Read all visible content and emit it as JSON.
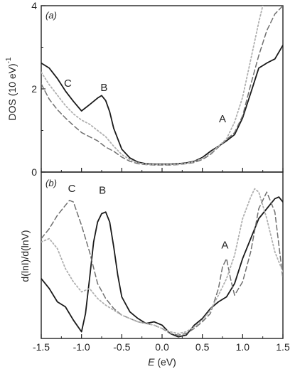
{
  "chart_data": [
    {
      "panel": "(a)",
      "panel_letter": "a",
      "type": "line",
      "ylabel": "DOS (10 eV)",
      "ylabel_exponent": "-1",
      "xlim": [
        -1.5,
        1.5
      ],
      "ylim": [
        0,
        4
      ],
      "yticks": [
        0,
        2,
        4
      ],
      "grid": false,
      "series": [
        {
          "style": "solid",
          "color": "#1a1a1a",
          "x": [
            -1.5,
            -1.4,
            -1.3,
            -1.2,
            -1.1,
            -1.0,
            -0.9,
            -0.8,
            -0.75,
            -0.7,
            -0.65,
            -0.6,
            -0.5,
            -0.4,
            -0.3,
            -0.2,
            -0.1,
            0.0,
            0.1,
            0.2,
            0.3,
            0.4,
            0.5,
            0.6,
            0.7,
            0.8,
            0.9,
            1.0,
            1.1,
            1.2,
            1.3,
            1.4,
            1.5
          ],
          "y": [
            2.62,
            2.5,
            2.25,
            1.95,
            1.7,
            1.47,
            1.62,
            1.78,
            1.84,
            1.72,
            1.45,
            1.05,
            0.55,
            0.34,
            0.24,
            0.2,
            0.19,
            0.19,
            0.19,
            0.2,
            0.22,
            0.26,
            0.35,
            0.5,
            0.62,
            0.75,
            0.9,
            1.3,
            1.9,
            2.5,
            2.62,
            2.72,
            3.05
          ]
        },
        {
          "style": "dashed",
          "color": "#707070",
          "x": [
            -1.5,
            -1.4,
            -1.3,
            -1.2,
            -1.1,
            -1.0,
            -0.9,
            -0.8,
            -0.7,
            -0.6,
            -0.5,
            -0.4,
            -0.3,
            -0.2,
            -0.1,
            0.0,
            0.1,
            0.2,
            0.3,
            0.4,
            0.5,
            0.6,
            0.7,
            0.8,
            0.9,
            1.0,
            1.1,
            1.2,
            1.3,
            1.4,
            1.5
          ],
          "y": [
            2.12,
            1.75,
            1.5,
            1.3,
            1.12,
            0.95,
            0.85,
            0.75,
            0.6,
            0.5,
            0.36,
            0.26,
            0.2,
            0.18,
            0.17,
            0.17,
            0.17,
            0.18,
            0.2,
            0.23,
            0.3,
            0.42,
            0.6,
            0.78,
            0.95,
            1.35,
            2.1,
            2.8,
            3.4,
            3.8,
            4.0
          ]
        },
        {
          "style": "dotted",
          "color": "#b0b0b0",
          "x": [
            -1.5,
            -1.4,
            -1.3,
            -1.2,
            -1.1,
            -1.0,
            -0.9,
            -0.8,
            -0.7,
            -0.6,
            -0.5,
            -0.4,
            -0.3,
            -0.2,
            -0.1,
            0.0,
            0.1,
            0.2,
            0.3,
            0.4,
            0.5,
            0.6,
            0.7,
            0.8,
            0.9,
            1.0,
            1.1,
            1.2,
            1.25
          ],
          "y": [
            2.4,
            2.1,
            1.85,
            1.6,
            1.4,
            1.25,
            1.15,
            1.0,
            0.85,
            0.62,
            0.42,
            0.3,
            0.22,
            0.19,
            0.18,
            0.18,
            0.18,
            0.19,
            0.21,
            0.25,
            0.33,
            0.45,
            0.62,
            0.8,
            1.2,
            1.8,
            2.7,
            3.6,
            4.0
          ]
        }
      ],
      "annotations": [
        {
          "text": "C",
          "x": -1.17,
          "y": 2.05
        },
        {
          "text": "B",
          "x": -0.72,
          "y": 1.95
        },
        {
          "text": "A",
          "x": 0.75,
          "y": 1.2
        }
      ]
    },
    {
      "panel": "(b)",
      "panel_letter": "b",
      "type": "line",
      "xlabel": "E",
      "xlabel_unit": " (eV)",
      "ylabel": "d(lnI)/d(lnV)",
      "xlim": [
        -1.5,
        1.5
      ],
      "xticks": [
        -1.5,
        -1.0,
        -0.5,
        0.0,
        0.5,
        1.0,
        1.5
      ],
      "xtick_labels": [
        "-1.5",
        "-1.0",
        "-0.5",
        "0.0",
        "0.5",
        "1.0",
        "1.5"
      ],
      "ylim": [
        0,
        1
      ],
      "grid": false,
      "series": [
        {
          "style": "solid",
          "color": "#1a1a1a",
          "x": [
            -1.5,
            -1.4,
            -1.3,
            -1.2,
            -1.1,
            -1.0,
            -0.95,
            -0.9,
            -0.85,
            -0.8,
            -0.75,
            -0.7,
            -0.65,
            -0.6,
            -0.55,
            -0.5,
            -0.4,
            -0.3,
            -0.2,
            -0.1,
            0.0,
            0.1,
            0.2,
            0.3,
            0.4,
            0.5,
            0.6,
            0.7,
            0.8,
            0.9,
            1.0,
            1.1,
            1.2,
            1.3,
            1.4,
            1.45,
            1.5
          ],
          "y": [
            0.36,
            0.3,
            0.22,
            0.19,
            0.11,
            0.04,
            0.15,
            0.36,
            0.58,
            0.7,
            0.75,
            0.76,
            0.7,
            0.55,
            0.38,
            0.25,
            0.16,
            0.12,
            0.09,
            0.1,
            0.08,
            0.03,
            0.01,
            0.02,
            0.08,
            0.12,
            0.18,
            0.22,
            0.25,
            0.33,
            0.48,
            0.6,
            0.72,
            0.78,
            0.84,
            0.85,
            0.82
          ]
        },
        {
          "style": "dashed",
          "color": "#707070",
          "x": [
            -1.5,
            -1.4,
            -1.3,
            -1.2,
            -1.15,
            -1.1,
            -1.0,
            -0.9,
            -0.8,
            -0.7,
            -0.6,
            -0.5,
            -0.4,
            -0.3,
            -0.2,
            -0.1,
            0.0,
            0.1,
            0.2,
            0.3,
            0.4,
            0.5,
            0.6,
            0.7,
            0.75,
            0.8,
            0.85,
            0.9,
            1.0,
            1.1,
            1.2,
            1.3,
            1.4,
            1.5
          ],
          "y": [
            0.6,
            0.66,
            0.74,
            0.8,
            0.83,
            0.82,
            0.68,
            0.52,
            0.33,
            0.24,
            0.18,
            0.14,
            0.12,
            0.1,
            0.09,
            0.08,
            0.06,
            0.03,
            0.02,
            0.03,
            0.06,
            0.1,
            0.15,
            0.3,
            0.43,
            0.48,
            0.36,
            0.26,
            0.34,
            0.52,
            0.78,
            0.88,
            0.76,
            0.36
          ]
        },
        {
          "style": "dotted",
          "color": "#b0b0b0",
          "x": [
            -1.5,
            -1.4,
            -1.3,
            -1.2,
            -1.1,
            -1.0,
            -0.9,
            -0.8,
            -0.7,
            -0.6,
            -0.5,
            -0.4,
            -0.3,
            -0.2,
            -0.1,
            0.0,
            0.1,
            0.2,
            0.3,
            0.4,
            0.5,
            0.6,
            0.7,
            0.8,
            0.9,
            1.0,
            1.1,
            1.15,
            1.2,
            1.3,
            1.4,
            1.5
          ],
          "y": [
            0.58,
            0.6,
            0.54,
            0.42,
            0.34,
            0.28,
            0.3,
            0.24,
            0.2,
            0.17,
            0.14,
            0.12,
            0.1,
            0.09,
            0.08,
            0.06,
            0.04,
            0.03,
            0.04,
            0.07,
            0.11,
            0.17,
            0.26,
            0.36,
            0.5,
            0.72,
            0.85,
            0.9,
            0.88,
            0.72,
            0.52,
            0.4
          ]
        }
      ],
      "annotations": [
        {
          "text": "C",
          "x": -1.12,
          "y": 0.88
        },
        {
          "text": "B",
          "x": -0.74,
          "y": 0.87
        },
        {
          "text": "A",
          "x": 0.78,
          "y": 0.54
        }
      ]
    }
  ]
}
